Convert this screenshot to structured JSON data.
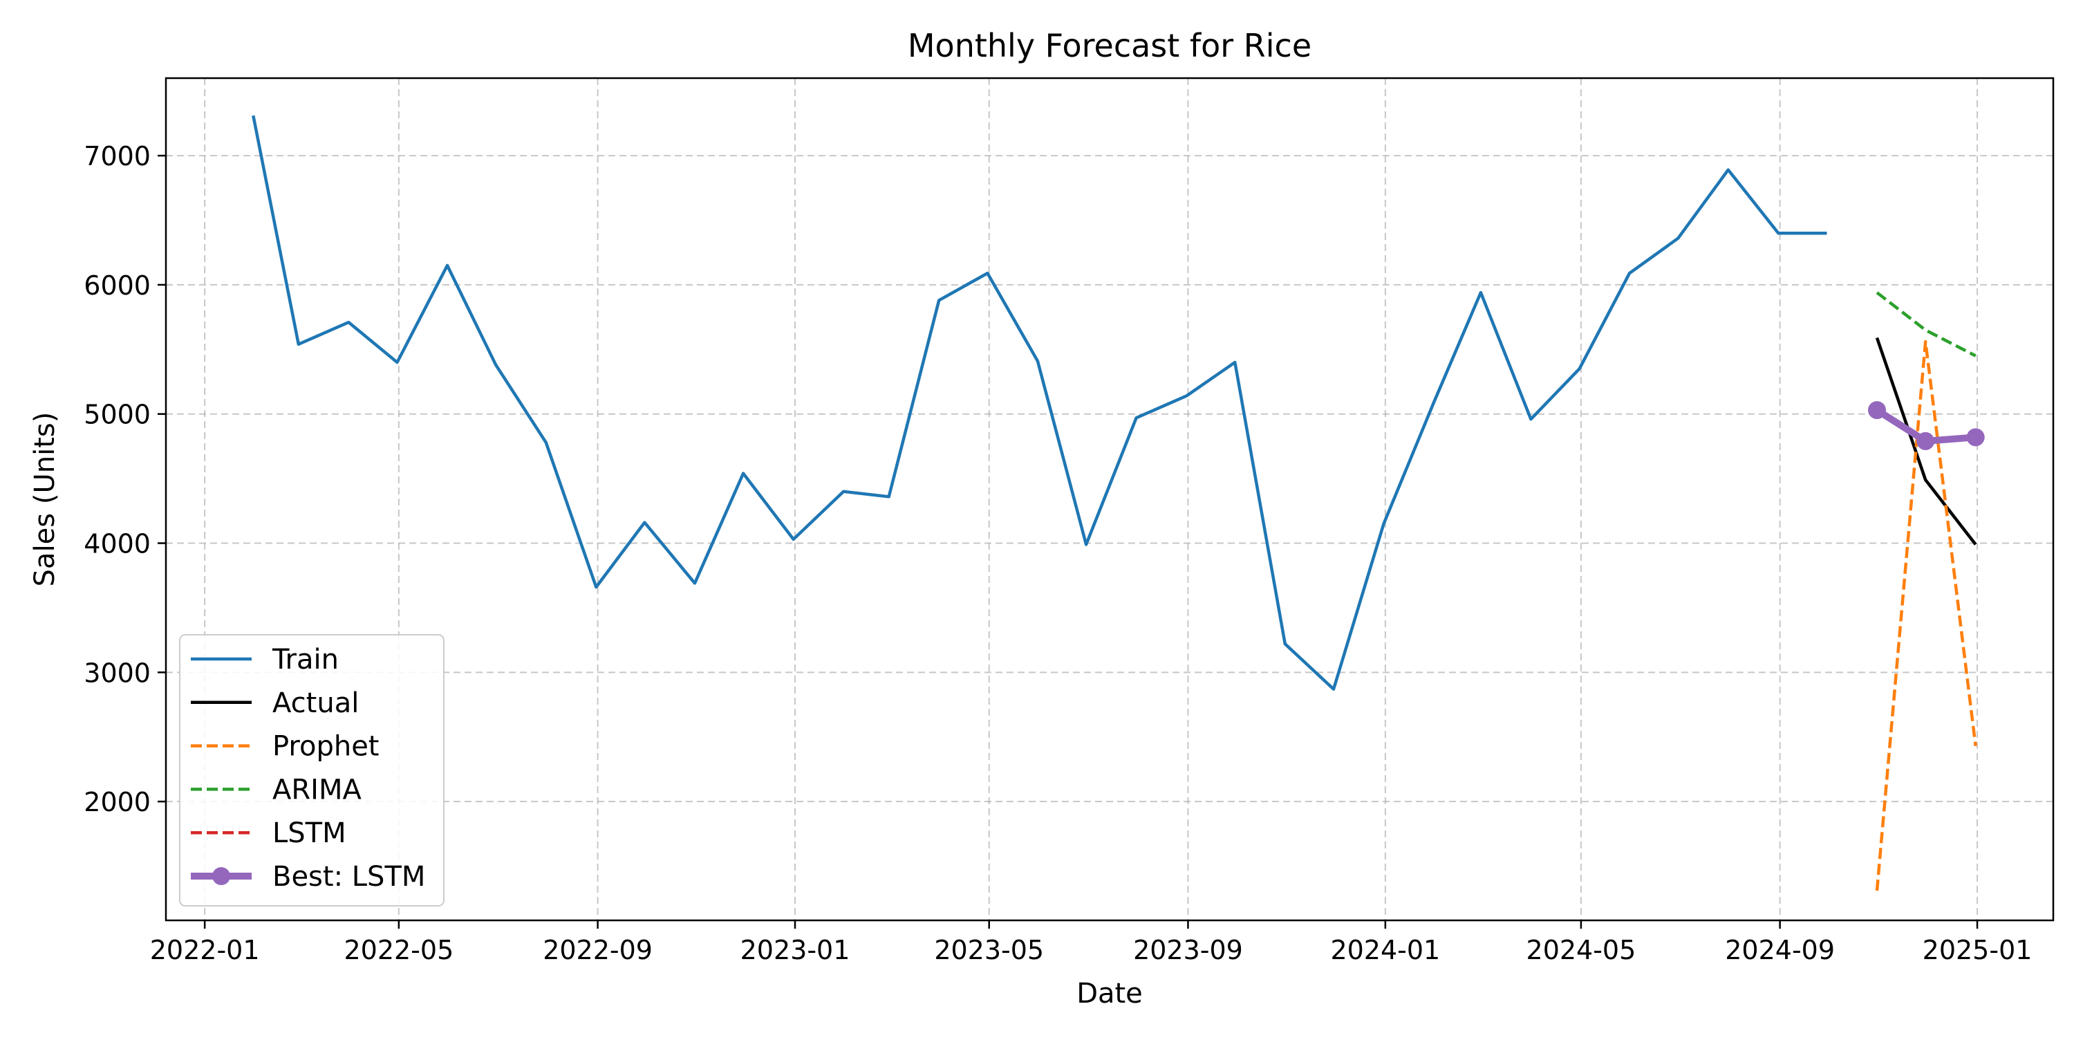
{
  "chart_data": {
    "type": "line",
    "title": "Monthly Forecast for Rice",
    "xlabel": "Date",
    "ylabel": "Sales (Units)",
    "x_range": [
      "2021-12-08",
      "2025-02-17"
    ],
    "ylim": [
      1080,
      7600
    ],
    "x_ticks": [
      "2022-01",
      "2022-05",
      "2022-09",
      "2023-01",
      "2023-05",
      "2023-09",
      "2024-01",
      "2024-05",
      "2024-09",
      "2025-01"
    ],
    "y_ticks": [
      2000,
      3000,
      4000,
      5000,
      6000,
      7000
    ],
    "grid": true,
    "grid_style": "dashed",
    "legend_position": "lower-left",
    "series": [
      {
        "name": "Train",
        "color": "#1f77b4",
        "style": "solid",
        "x": [
          "2022-01-31",
          "2022-02-28",
          "2022-03-31",
          "2022-04-30",
          "2022-05-31",
          "2022-06-30",
          "2022-07-31",
          "2022-08-31",
          "2022-09-30",
          "2022-10-31",
          "2022-11-30",
          "2022-12-31",
          "2023-01-31",
          "2023-02-28",
          "2023-03-31",
          "2023-04-30",
          "2023-05-31",
          "2023-06-30",
          "2023-07-31",
          "2023-08-31",
          "2023-09-30",
          "2023-10-31",
          "2023-11-30",
          "2023-12-31",
          "2024-01-31",
          "2024-02-29",
          "2024-03-31",
          "2024-04-30",
          "2024-05-31",
          "2024-06-30",
          "2024-07-31",
          "2024-08-31",
          "2024-09-30"
        ],
        "values": [
          7310,
          5540,
          5710,
          5400,
          6150,
          5380,
          4780,
          3660,
          4160,
          3690,
          4540,
          4030,
          4400,
          4360,
          5880,
          6090,
          5410,
          3990,
          4970,
          5140,
          5400,
          3220,
          2870,
          4150,
          5090,
          5940,
          4960,
          5350,
          6090,
          6360,
          6890,
          6400,
          6400
        ]
      },
      {
        "name": "Actual",
        "color": "#000000",
        "style": "solid",
        "x": [
          "2024-10-31",
          "2024-11-30",
          "2024-12-31"
        ],
        "values": [
          5590,
          4490,
          3990
        ]
      },
      {
        "name": "Prophet",
        "color": "#ff7f0e",
        "style": "dashed",
        "x": [
          "2024-10-31",
          "2024-11-30",
          "2024-12-31"
        ],
        "values": [
          1310,
          5560,
          2430
        ]
      },
      {
        "name": "ARIMA",
        "color": "#2ca02c",
        "style": "dashed",
        "x": [
          "2024-10-31",
          "2024-11-30",
          "2024-12-31"
        ],
        "values": [
          5940,
          5650,
          5450
        ]
      },
      {
        "name": "LSTM",
        "color": "#d62728",
        "style": "dashed",
        "x": [
          "2024-10-31",
          "2024-11-30",
          "2024-12-31"
        ],
        "values": [
          5030,
          4790,
          4820
        ]
      },
      {
        "name": "Best: LSTM",
        "color": "#9467bd",
        "style": "thick-markers",
        "x": [
          "2024-10-31",
          "2024-11-30",
          "2024-12-31"
        ],
        "values": [
          5030,
          4790,
          4820
        ]
      }
    ]
  }
}
